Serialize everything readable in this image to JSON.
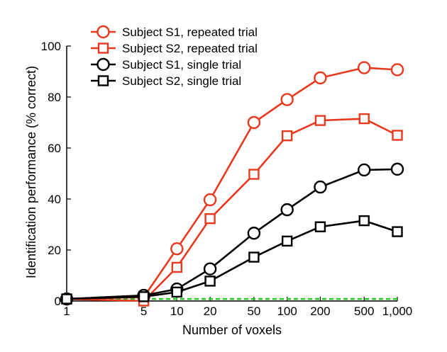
{
  "chart_data": {
    "type": "line",
    "xlabel": "Number of voxels",
    "ylabel": "Identification performance (% correct)",
    "x_scale": "log",
    "x": [
      1,
      5,
      10,
      20,
      50,
      100,
      200,
      500,
      1000
    ],
    "x_tick_labels": [
      "1",
      "5",
      "10",
      "20",
      "50",
      "100",
      "200",
      "500",
      "1,000"
    ],
    "xlim": [
      1,
      1000
    ],
    "ylim": [
      0,
      100
    ],
    "y_ticks": [
      0,
      20,
      40,
      60,
      80,
      100
    ],
    "y_tick_labels": [
      "0",
      "20",
      "40",
      "60",
      "80",
      "100"
    ],
    "grid": false,
    "legend_position": "top-left",
    "series": [
      {
        "name": "Subject S1, repeated trial",
        "color": "#e8391e",
        "marker": "circle",
        "values": [
          0.8,
          1.5,
          20.5,
          39.7,
          70,
          79,
          87.5,
          91.5,
          90.7
        ]
      },
      {
        "name": "Subject S2, repeated trial",
        "color": "#e8391e",
        "marker": "square",
        "values": [
          0.8,
          0,
          13.2,
          32.3,
          49.7,
          64.8,
          70.8,
          71.5,
          65
        ]
      },
      {
        "name": "Subject S1, single trial",
        "color": "#000000",
        "marker": "circle",
        "values": [
          0.8,
          2.2,
          4.7,
          12.6,
          26.6,
          35.8,
          44.7,
          51.4,
          51.7
        ]
      },
      {
        "name": "Subject S2, single trial",
        "color": "#000000",
        "marker": "square",
        "values": [
          0.8,
          1.7,
          3.5,
          7.8,
          17.2,
          23.5,
          29.1,
          31.5,
          27.2
        ]
      }
    ],
    "chance_line": {
      "value": 0.8,
      "color": "#22cc22",
      "style": "dashed"
    }
  }
}
